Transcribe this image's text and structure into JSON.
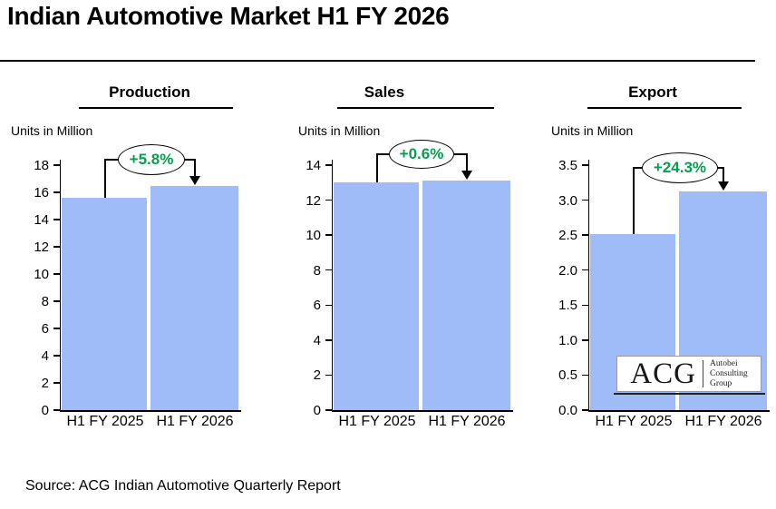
{
  "page": {
    "title": "Indian Automotive Market H1 FY 2026",
    "source": "Source: ACG Indian Automotive Quarterly Report"
  },
  "logo": {
    "acronym": "ACG",
    "lines": [
      "Autobei",
      "Consulting",
      "Group"
    ]
  },
  "colors": {
    "bar": "#9FBCF8",
    "growth_green": "#00A24E",
    "axis": "#000000"
  },
  "chart_data": [
    {
      "type": "bar",
      "title": "Production",
      "units_label": "Units in Million",
      "categories": [
        "H1 FY 2025",
        "H1 FY 2026"
      ],
      "values": [
        15.6,
        16.5
      ],
      "growth_label": "+5.8%",
      "ylim": [
        0,
        18
      ],
      "ytick_step": 2,
      "ytick_decimals": 0,
      "grid": false,
      "legend": "none"
    },
    {
      "type": "bar",
      "title": "Sales",
      "units_label": "Units in Million",
      "categories": [
        "H1 FY 2025",
        "H1 FY 2026"
      ],
      "values": [
        13.0,
        13.1
      ],
      "growth_label": "+0.6%",
      "ylim": [
        0,
        14
      ],
      "ytick_step": 2,
      "ytick_decimals": 0,
      "grid": false,
      "legend": "none"
    },
    {
      "type": "bar",
      "title": "Export",
      "units_label": "Units in Million",
      "categories": [
        "H1 FY 2025",
        "H1 FY 2026"
      ],
      "values": [
        2.52,
        3.13
      ],
      "growth_label": "+24.3%",
      "ylim": [
        0,
        3.5
      ],
      "ytick_step": 0.5,
      "ytick_decimals": 1,
      "grid": false,
      "legend": "none"
    }
  ]
}
